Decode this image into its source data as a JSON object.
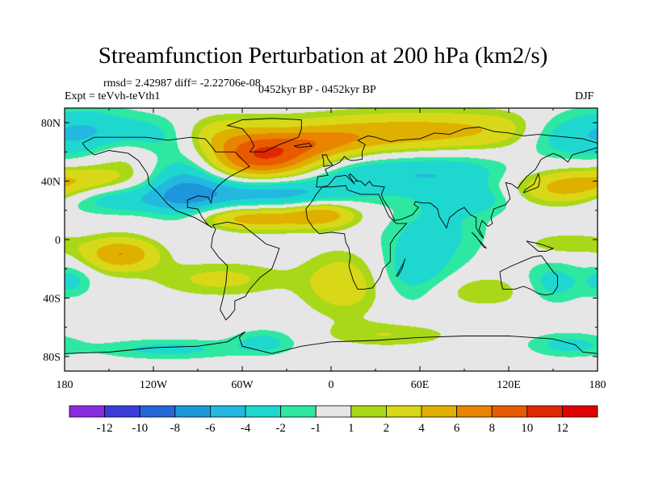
{
  "page": {
    "title": "Streamfunction Perturbation at 200 hPa (km2/s)",
    "stats_line": "rmsd= 2.42987 diff= -2.22706e-08",
    "experiment_line": "Expt = teVvh-teVth1",
    "period_label": "0452kyr BP - 0452kyr BP",
    "season_label": "DJF"
  },
  "chart_data": {
    "type": "heatmap",
    "title": "Streamfunction Perturbation at 200 hPa (km2/s)",
    "projection": "cylindrical equidistant",
    "x_range": [
      -180,
      180
    ],
    "y_range": [
      -90,
      90
    ],
    "xticks": [
      {
        "value": -180,
        "label": "180"
      },
      {
        "value": -120,
        "label": "120W"
      },
      {
        "value": -60,
        "label": "60W"
      },
      {
        "value": 0,
        "label": "0"
      },
      {
        "value": 60,
        "label": "60E"
      },
      {
        "value": 120,
        "label": "120E"
      },
      {
        "value": 180,
        "label": "180"
      }
    ],
    "yticks": [
      {
        "value": 80,
        "label": "80N"
      },
      {
        "value": 40,
        "label": "40N"
      },
      {
        "value": 0,
        "label": "0"
      },
      {
        "value": -40,
        "label": "40S"
      },
      {
        "value": -80,
        "label": "80S"
      }
    ],
    "colorbar": {
      "levels": [
        -12,
        -10,
        -8,
        -6,
        -4,
        -2,
        -1,
        1,
        2,
        4,
        6,
        8,
        10,
        12
      ],
      "colors": [
        "#8a2be2",
        "#3c3cdc",
        "#2566d8",
        "#1e96dc",
        "#22b8e0",
        "#1ed8d0",
        "#2ee8a2",
        "#e6e6e6",
        "#a8d818",
        "#d8d818",
        "#e0b000",
        "#e88400",
        "#e85a00",
        "#e02800",
        "#e00000"
      ]
    },
    "anomalies": [
      {
        "lon": -168,
        "lat": 72,
        "amp": -5,
        "rx": 24,
        "ry": 12
      },
      {
        "lon": -140,
        "lat": 60,
        "amp": 2.5,
        "rx": 22,
        "ry": 10
      },
      {
        "lon": -118,
        "lat": 70,
        "amp": -3,
        "rx": 20,
        "ry": 10
      },
      {
        "lon": -98,
        "lat": 35,
        "amp": -5,
        "rx": 18,
        "ry": 18
      },
      {
        "lon": -162,
        "lat": 42,
        "amp": 2.5,
        "rx": 25,
        "ry": 6
      },
      {
        "lon": -80,
        "lat": 72,
        "amp": 2.5,
        "rx": 22,
        "ry": 9
      },
      {
        "lon": -45,
        "lat": 57,
        "amp": 10,
        "rx": 27,
        "ry": 12
      },
      {
        "lon": -5,
        "lat": 66,
        "amp": 3,
        "rx": 22,
        "ry": 8
      },
      {
        "lon": 30,
        "lat": 72,
        "amp": 4,
        "rx": 38,
        "ry": 10
      },
      {
        "lon": 100,
        "lat": 75,
        "amp": 3.5,
        "rx": 45,
        "ry": 9
      },
      {
        "lon": 150,
        "lat": 72,
        "amp": -3,
        "rx": 18,
        "ry": 10
      },
      {
        "lon": -45,
        "lat": 32,
        "amp": -5.5,
        "rx": 38,
        "ry": 8
      },
      {
        "lon": 20,
        "lat": 45,
        "amp": -3,
        "rx": 35,
        "ry": 10
      },
      {
        "lon": 80,
        "lat": 45,
        "amp": -3,
        "rx": 30,
        "ry": 10
      },
      {
        "lon": -145,
        "lat": 27,
        "amp": -3,
        "rx": 32,
        "ry": 7
      },
      {
        "lon": 160,
        "lat": 35,
        "amp": 5,
        "rx": 25,
        "ry": 8
      },
      {
        "lon": 95,
        "lat": 27,
        "amp": -2.5,
        "rx": 20,
        "ry": 7
      },
      {
        "lon": -50,
        "lat": 15,
        "amp": 5.5,
        "rx": 35,
        "ry": 6
      },
      {
        "lon": -5,
        "lat": 18,
        "amp": 4,
        "rx": 15,
        "ry": 6
      },
      {
        "lon": 70,
        "lat": 5,
        "amp": -2.5,
        "rx": 25,
        "ry": 15
      },
      {
        "lon": 160,
        "lat": -3,
        "amp": 2,
        "rx": 20,
        "ry": 5
      },
      {
        "lon": -142,
        "lat": -10,
        "amp": 6,
        "rx": 18,
        "ry": 8
      },
      {
        "lon": -175,
        "lat": -28,
        "amp": -2.5,
        "rx": 10,
        "ry": 8
      },
      {
        "lon": -75,
        "lat": -27,
        "amp": 2.5,
        "rx": 30,
        "ry": 8
      },
      {
        "lon": 10,
        "lat": -30,
        "amp": 3.5,
        "rx": 20,
        "ry": 15
      },
      {
        "lon": 55,
        "lat": -25,
        "amp": -3,
        "rx": 20,
        "ry": 15
      },
      {
        "lon": 100,
        "lat": -35,
        "amp": 2,
        "rx": 30,
        "ry": 8
      },
      {
        "lon": 150,
        "lat": -30,
        "amp": -3,
        "rx": 15,
        "ry": 10
      },
      {
        "lon": -45,
        "lat": -70,
        "amp": -2.5,
        "rx": 15,
        "ry": 6
      },
      {
        "lon": -110,
        "lat": -75,
        "amp": -2.5,
        "rx": 35,
        "ry": 5
      },
      {
        "lon": 40,
        "lat": -65,
        "amp": 2,
        "rx": 30,
        "ry": 6
      },
      {
        "lon": 160,
        "lat": -72,
        "amp": -2.5,
        "rx": 20,
        "ry": 6
      }
    ]
  }
}
